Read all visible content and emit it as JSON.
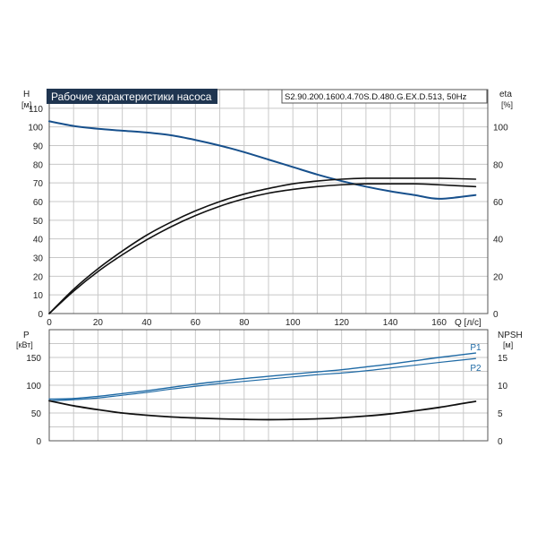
{
  "colors": {
    "head": "#17508c",
    "power": "#1f6aa5",
    "black": "#111111",
    "grid": "#c8c8c8",
    "title_bg": "#1f3550"
  },
  "chart_data": [
    {
      "type": "line",
      "title": "Рабочие характеристики насоса",
      "subtitle": "S2.90.200.1600.4.70S.D.480.G.EX.D.513, 50Hz",
      "xlabel": "Q [л/с]",
      "ylabel": "H",
      "ylabel_unit": "[м]",
      "y2label": "eta",
      "y2label_unit": "[%]",
      "xlim": [
        0,
        180
      ],
      "ylim": [
        0,
        120
      ],
      "y2lim": [
        0,
        120
      ],
      "x_ticks": [
        "0",
        "20",
        "40",
        "60",
        "80",
        "100",
        "120",
        "140",
        "160"
      ],
      "y_ticks": [
        "0",
        "10",
        "20",
        "30",
        "40",
        "50",
        "60",
        "70",
        "80",
        "90",
        "100",
        "110"
      ],
      "y2_ticks": [
        "0",
        "20",
        "40",
        "60",
        "80",
        "100"
      ],
      "grid": true,
      "series": [
        {
          "key": "H",
          "axis": "left",
          "x": [
            0,
            10,
            20,
            30,
            40,
            50,
            60,
            70,
            80,
            90,
            100,
            110,
            120,
            130,
            140,
            150,
            160,
            175
          ],
          "y": [
            103,
            100.5,
            99,
            98,
            97,
            95.5,
            93,
            90,
            86.5,
            82.5,
            78.5,
            74.5,
            71,
            68,
            65.5,
            63.5,
            61.5,
            63.5
          ]
        },
        {
          "key": "eta1",
          "axis": "right",
          "x": [
            0,
            10,
            20,
            30,
            40,
            50,
            60,
            70,
            80,
            90,
            100,
            110,
            120,
            130,
            140,
            150,
            160,
            175
          ],
          "y": [
            0,
            13,
            24,
            33.5,
            42,
            49,
            55,
            60,
            64,
            67,
            69.5,
            71,
            72,
            72.5,
            72.5,
            72.5,
            72.5,
            72
          ]
        },
        {
          "key": "eta2",
          "axis": "right",
          "x": [
            0,
            10,
            20,
            30,
            40,
            50,
            60,
            70,
            80,
            90,
            100,
            110,
            120,
            130,
            140,
            150,
            160,
            175
          ],
          "y": [
            0,
            12,
            22.5,
            31.5,
            39.5,
            46.5,
            52.5,
            57.5,
            61.5,
            64.5,
            66.5,
            68,
            69,
            69.5,
            69.5,
            69.5,
            69,
            68
          ]
        }
      ]
    },
    {
      "type": "line",
      "ylabel": "P",
      "ylabel_unit": "[кВт]",
      "y2label": "NPSH",
      "y2label_unit": "[м]",
      "xlim": [
        0,
        180
      ],
      "ylim": [
        0,
        200
      ],
      "y2lim": [
        0,
        20
      ],
      "y_ticks": [
        "0",
        "50",
        "100",
        "150"
      ],
      "y2_ticks": [
        "0",
        "5",
        "10",
        "15"
      ],
      "grid": true,
      "series": [
        {
          "key": "P1",
          "name": "P1",
          "axis": "left",
          "x": [
            0,
            10,
            20,
            30,
            40,
            50,
            60,
            70,
            80,
            90,
            100,
            110,
            120,
            130,
            140,
            150,
            160,
            175
          ],
          "y": [
            75,
            76,
            80,
            85,
            90,
            96,
            102,
            107,
            112,
            116,
            120,
            124,
            128,
            133,
            138,
            144,
            150,
            158
          ]
        },
        {
          "key": "P2",
          "name": "P2",
          "axis": "left",
          "x": [
            0,
            10,
            20,
            30,
            40,
            50,
            60,
            70,
            80,
            90,
            100,
            110,
            120,
            130,
            140,
            150,
            160,
            175
          ],
          "y": [
            72,
            74,
            77,
            82,
            87,
            93,
            98,
            103,
            107,
            111,
            115,
            119,
            122,
            126,
            131,
            136,
            141,
            148
          ]
        },
        {
          "key": "NPSH",
          "axis": "right",
          "x": [
            0,
            10,
            20,
            30,
            40,
            50,
            60,
            70,
            80,
            90,
            100,
            110,
            120,
            130,
            140,
            150,
            160,
            175
          ],
          "y": [
            7.2,
            6.3,
            5.6,
            5.0,
            4.6,
            4.3,
            4.1,
            3.95,
            3.85,
            3.8,
            3.85,
            3.95,
            4.15,
            4.45,
            4.85,
            5.4,
            6.0,
            7.1
          ]
        }
      ]
    }
  ]
}
